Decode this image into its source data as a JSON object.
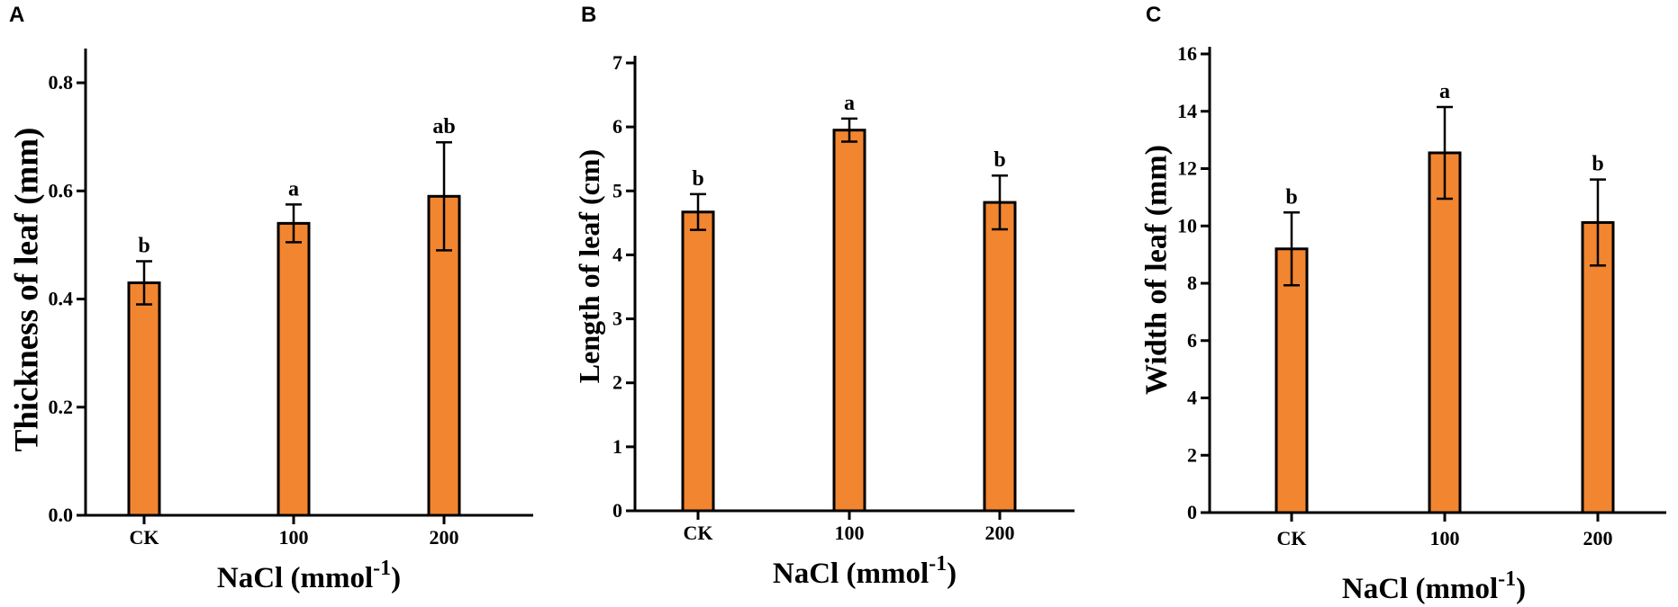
{
  "colors": {
    "bar": "#F28530",
    "axis": "#000000"
  },
  "chart_data": [
    {
      "panel": "A",
      "type": "bar",
      "categories": [
        "CK",
        "100",
        "200"
      ],
      "values": [
        0.43,
        0.54,
        0.59
      ],
      "errors": [
        0.04,
        0.035,
        0.1
      ],
      "significance": [
        "b",
        "a",
        "ab"
      ],
      "xlabel": "NaCl (mmol",
      "xlabel_sup": "-1",
      "ylabel": "Thickness of leaf (mm)",
      "ylim": [
        0,
        0.85
      ],
      "yticks": [
        0.0,
        0.2,
        0.4,
        0.6,
        0.8
      ],
      "ytick_labels": [
        "0.0",
        "0.2",
        "0.4",
        "0.6",
        "0.8"
      ]
    },
    {
      "panel": "B",
      "type": "bar",
      "categories": [
        "CK",
        "100",
        "200"
      ],
      "values": [
        4.67,
        5.95,
        4.82
      ],
      "errors": [
        0.28,
        0.18,
        0.42
      ],
      "significance": [
        "b",
        "a",
        "b"
      ],
      "xlabel": "NaCl (mmol",
      "xlabel_sup": "-1",
      "ylabel": "Length of leaf (cm)",
      "ylim": [
        0,
        7
      ],
      "yticks": [
        0,
        1,
        2,
        3,
        4,
        5,
        6,
        7
      ],
      "ytick_labels": [
        "0",
        "1",
        "2",
        "3",
        "4",
        "5",
        "6",
        "7"
      ]
    },
    {
      "panel": "C",
      "type": "bar",
      "categories": [
        "CK",
        "100",
        "200"
      ],
      "values": [
        9.2,
        12.55,
        10.12
      ],
      "errors": [
        1.27,
        1.6,
        1.5
      ],
      "significance": [
        "b",
        "a",
        "b"
      ],
      "xlabel": "NaCl (mmol",
      "xlabel_sup": "-1",
      "ylabel": "Width of leaf (mm)",
      "ylim": [
        0,
        16
      ],
      "yticks": [
        0,
        2,
        4,
        6,
        8,
        10,
        12,
        14,
        16
      ],
      "ytick_labels": [
        "0",
        "2",
        "4",
        "6",
        "8",
        "10",
        "12",
        "14",
        "16"
      ]
    }
  ]
}
